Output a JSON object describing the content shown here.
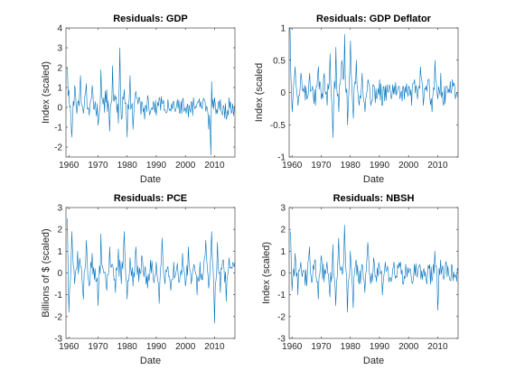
{
  "chart_data": [
    {
      "type": "line",
      "title": "Residuals: GDP",
      "xlabel": "Date",
      "ylabel": "Index (scaled)",
      "xlim": [
        1959,
        2017
      ],
      "ylim": [
        -2.5,
        4
      ],
      "xticks": [
        1960,
        1970,
        1980,
        1990,
        2000,
        2010
      ],
      "yticks": [
        -2,
        -1,
        0,
        1,
        2,
        3,
        4
      ],
      "ytick_labels": [
        "-2",
        "-1",
        "0",
        "1",
        "2",
        "3",
        "4"
      ],
      "grid": false,
      "color": "#0072bd",
      "series": [
        {
          "x": [
            1959.5,
            1961,
            1962,
            1963,
            1964,
            1965,
            1966,
            1967,
            1968,
            1969,
            1970,
            1971,
            1972,
            1973,
            1974,
            1975,
            1976,
            1977,
            1977.5,
            1978,
            1979,
            1980,
            1981,
            1982,
            1983,
            1984,
            1985,
            1986,
            1987,
            1988,
            1989,
            1990,
            1991,
            1992,
            1993,
            1994,
            1995,
            1996,
            1997,
            1998,
            1999,
            2000,
            2001,
            2002,
            2003,
            2004,
            2005,
            2006,
            2007,
            2008,
            2008.8,
            2009,
            2010,
            2011,
            2012,
            2013,
            2014,
            2015,
            2016,
            2017
          ],
          "y": [
            2.0,
            -1.5,
            1.1,
            0.2,
            1.6,
            -0.3,
            1.2,
            -0.4,
            1.1,
            0.3,
            -0.9,
            1.9,
            0.5,
            0.9,
            -1.2,
            2.1,
            0.4,
            -0.8,
            3.0,
            -0.6,
            0.9,
            -1.5,
            1.6,
            -1.1,
            0.8,
            0.5,
            0.3,
            -0.6,
            0.6,
            -0.2,
            0.3,
            -0.4,
            0.5,
            0.2,
            -0.1,
            0.4,
            -0.2,
            0.3,
            0.1,
            -0.3,
            0.4,
            0.0,
            -0.5,
            0.3,
            0.1,
            0.2,
            0.0,
            0.3,
            -0.2,
            -1.1,
            -2.4,
            1.3,
            0.5,
            -0.3,
            0.4,
            0.1,
            -0.6,
            0.5,
            -0.2,
            0.1
          ]
        }
      ]
    },
    {
      "type": "line",
      "title": "Residuals: GDP Deflator",
      "xlabel": "Date",
      "ylabel": "Index (scaled",
      "xlim": [
        1959,
        2017
      ],
      "ylim": [
        -1,
        1
      ],
      "xticks": [
        1960,
        1970,
        1980,
        1990,
        2000,
        2010
      ],
      "yticks": [
        -1,
        -0.5,
        0,
        0.5,
        1
      ],
      "ytick_labels": [
        "-1",
        "-0.5",
        "0",
        "0.5",
        "1"
      ],
      "grid": false,
      "color": "#0072bd",
      "series": [
        {
          "x": [
            1959.3,
            1960,
            1961,
            1962,
            1963,
            1964,
            1965,
            1966,
            1967,
            1968,
            1969,
            1970,
            1971,
            1972,
            1973,
            1974,
            1975,
            1976,
            1977,
            1978,
            1979,
            1980,
            1981,
            1982,
            1983,
            1984,
            1985,
            1986,
            1987,
            1988,
            1989,
            1990,
            1991,
            1992,
            1993,
            1994,
            1995,
            1996,
            1997,
            1998,
            1999,
            2000,
            2001,
            2002,
            2003,
            2004,
            2005,
            2006,
            2007,
            2008,
            2009,
            2010,
            2011,
            2012,
            2013,
            2014,
            2015,
            2016,
            2017
          ],
          "y": [
            1.0,
            -0.3,
            0.4,
            -0.2,
            0.3,
            0.0,
            -0.1,
            0.3,
            0.1,
            -0.2,
            0.4,
            -0.1,
            0.3,
            -0.2,
            0.6,
            -0.7,
            0.7,
            -0.3,
            0.5,
            0.9,
            -0.5,
            0.8,
            -0.4,
            0.5,
            -0.2,
            0.3,
            -0.3,
            0.2,
            -0.2,
            0.1,
            -0.1,
            0.2,
            -0.2,
            0.1,
            0.0,
            -0.1,
            0.1,
            0.0,
            -0.1,
            0.1,
            0.0,
            0.1,
            -0.2,
            0.2,
            -0.1,
            0.4,
            -0.2,
            0.1,
            0.2,
            -0.3,
            0.5,
            -0.1,
            0.3,
            -0.2,
            0.1,
            0.0,
            0.2,
            -0.1,
            0.1
          ]
        }
      ]
    },
    {
      "type": "line",
      "title": "Residuals: PCE",
      "xlabel": "Date",
      "ylabel": "Billions of $ (scaled)",
      "xlim": [
        1959,
        2017
      ],
      "ylim": [
        -3,
        3
      ],
      "xticks": [
        1960,
        1970,
        1980,
        1990,
        2000,
        2010
      ],
      "yticks": [
        -3,
        -2,
        -1,
        0,
        1,
        2,
        3
      ],
      "ytick_labels": [
        "-3",
        "-2",
        "-1",
        "0",
        "1",
        "2",
        "3"
      ],
      "grid": false,
      "color": "#0072bd",
      "series": [
        {
          "x": [
            1959.5,
            1960,
            1961,
            1962,
            1963,
            1964,
            1965,
            1966,
            1967,
            1968,
            1969,
            1970,
            1971,
            1972,
            1973,
            1974,
            1975,
            1976,
            1977,
            1978,
            1979,
            1980,
            1981,
            1982,
            1983,
            1984,
            1985,
            1986,
            1987,
            1988,
            1989,
            1990,
            1991,
            1992,
            1993,
            1994,
            1995,
            1996,
            1997,
            1998,
            1999,
            2000,
            2001,
            2002,
            2003,
            2004,
            2005,
            2006,
            2007,
            2008,
            2009,
            2010,
            2011,
            2012,
            2013,
            2014,
            2015,
            2016,
            2017
          ],
          "y": [
            2.5,
            -1.8,
            1.9,
            -0.5,
            1.0,
            0.3,
            -1.2,
            1.5,
            -0.6,
            0.9,
            0.2,
            -1.5,
            1.8,
            0.0,
            -0.8,
            1.2,
            0.4,
            -0.9,
            1.1,
            -0.5,
            1.9,
            -1.2,
            0.7,
            -0.6,
            1.2,
            -0.4,
            0.8,
            0.1,
            -0.7,
            0.6,
            -0.3,
            0.5,
            -1.4,
            1.6,
            -0.5,
            0.3,
            -0.8,
            0.5,
            0.2,
            -0.4,
            0.9,
            -0.6,
            1.2,
            -0.5,
            0.4,
            -1.0,
            0.5,
            -0.3,
            1.5,
            -0.7,
            1.9,
            -2.3,
            1.4,
            -0.9,
            0.6,
            -1.3,
            0.7,
            0.2,
            0.5
          ]
        }
      ]
    },
    {
      "type": "line",
      "title": "Residuals: NBSH",
      "xlabel": "Date",
      "ylabel": "Index (scaled)",
      "xlim": [
        1959,
        2017
      ],
      "ylim": [
        -3,
        3
      ],
      "xticks": [
        1960,
        1970,
        1980,
        1990,
        2000,
        2010
      ],
      "yticks": [
        -3,
        -2,
        -1,
        0,
        1,
        2,
        3
      ],
      "ytick_labels": [
        "-3",
        "-2",
        "-1",
        "0",
        "1",
        "2",
        "3"
      ],
      "grid": false,
      "color": "#0072bd",
      "series": [
        {
          "x": [
            1959.5,
            1960,
            1961,
            1962,
            1963,
            1964,
            1965,
            1966,
            1967,
            1968,
            1969,
            1970,
            1971,
            1972,
            1973,
            1974,
            1975,
            1976,
            1977,
            1978,
            1979,
            1980,
            1981,
            1982,
            1983,
            1984,
            1985,
            1986,
            1987,
            1988,
            1989,
            1990,
            1991,
            1992,
            1993,
            1994,
            1995,
            1996,
            1997,
            1998,
            1999,
            2000,
            2001,
            2002,
            2003,
            2004,
            2005,
            2006,
            2007,
            2008,
            2009,
            2010,
            2011,
            2012,
            2013,
            2014,
            2015,
            2016,
            2017
          ],
          "y": [
            1.9,
            -0.8,
            0.9,
            -1.0,
            0.5,
            0.1,
            -0.6,
            1.2,
            -0.3,
            0.6,
            -1.2,
            0.8,
            -0.4,
            0.5,
            -1.1,
            1.3,
            -1.5,
            1.6,
            0.3,
            2.2,
            -1.8,
            1.0,
            -1.6,
            0.6,
            -0.5,
            0.4,
            -0.9,
            1.4,
            -0.5,
            0.7,
            -0.4,
            0.3,
            -1.0,
            0.5,
            0.2,
            -0.4,
            0.5,
            -0.2,
            0.3,
            -0.5,
            0.4,
            0.0,
            -0.3,
            0.4,
            -0.2,
            0.3,
            0.1,
            -0.3,
            0.2,
            -0.4,
            1.0,
            -1.7,
            0.6,
            -0.3,
            0.4,
            -0.2,
            0.3,
            -0.1,
            0.1
          ]
        }
      ]
    }
  ]
}
